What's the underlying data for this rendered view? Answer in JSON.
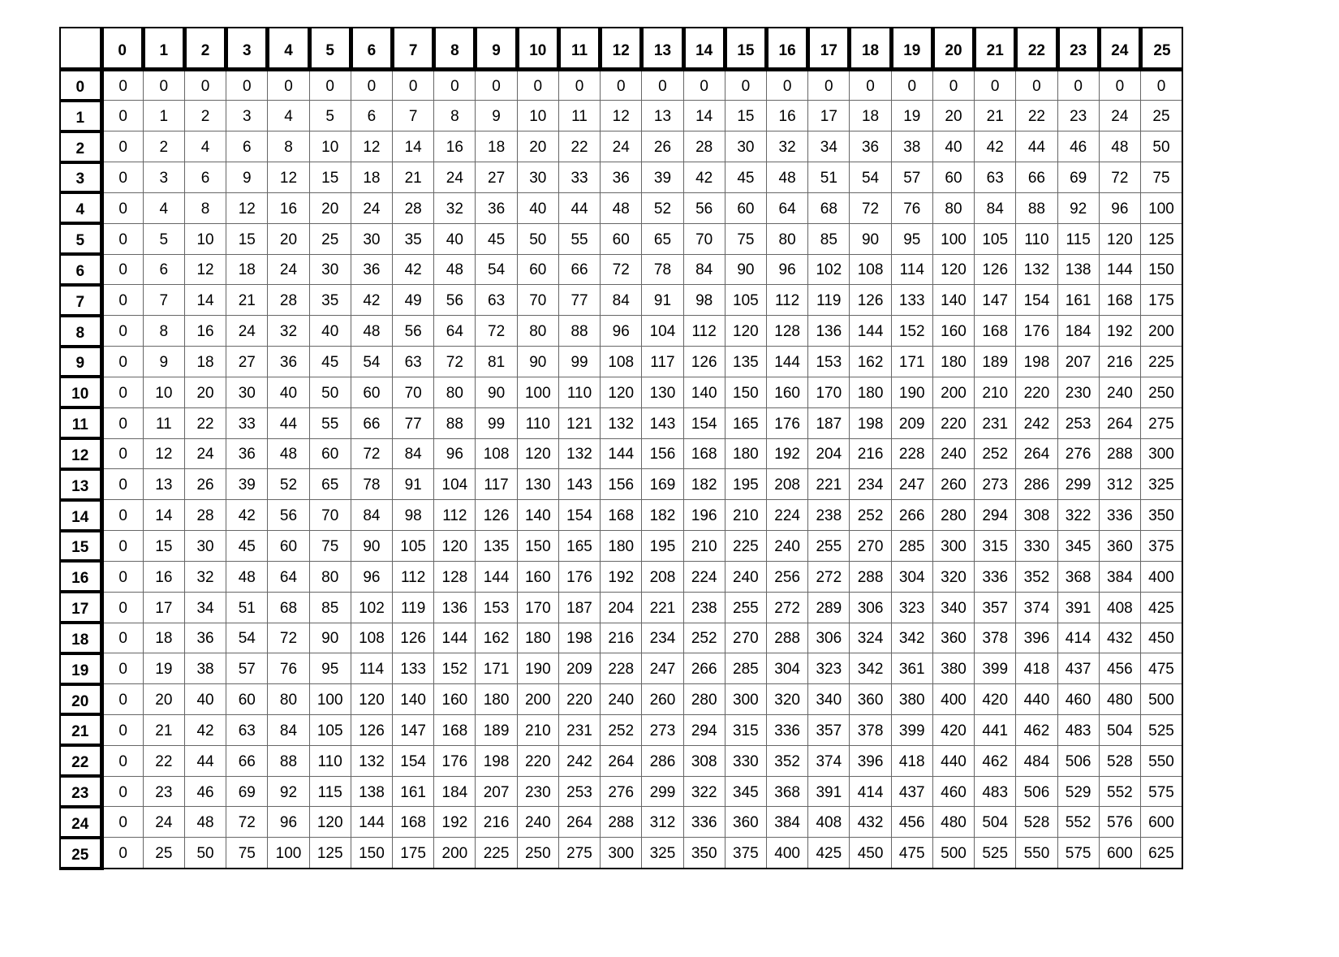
{
  "table": {
    "column_headers": [
      "0",
      "1",
      "2",
      "3",
      "4",
      "5",
      "6",
      "7",
      "8",
      "9",
      "10",
      "11",
      "12",
      "13",
      "14",
      "15",
      "16",
      "17",
      "18",
      "19",
      "20",
      "21",
      "22",
      "23",
      "24",
      "25"
    ],
    "row_headers": [
      "0",
      "1",
      "2",
      "3",
      "4",
      "5",
      "6",
      "7",
      "8",
      "9",
      "10",
      "11",
      "12",
      "13",
      "14",
      "15",
      "16",
      "17",
      "18",
      "19",
      "20",
      "21",
      "22",
      "23",
      "24",
      "25"
    ],
    "rows": [
      [
        0,
        0,
        0,
        0,
        0,
        0,
        0,
        0,
        0,
        0,
        0,
        0,
        0,
        0,
        0,
        0,
        0,
        0,
        0,
        0,
        0,
        0,
        0,
        0,
        0,
        0
      ],
      [
        0,
        1,
        2,
        3,
        4,
        5,
        6,
        7,
        8,
        9,
        10,
        11,
        12,
        13,
        14,
        15,
        16,
        17,
        18,
        19,
        20,
        21,
        22,
        23,
        24,
        25
      ],
      [
        0,
        2,
        4,
        6,
        8,
        10,
        12,
        14,
        16,
        18,
        20,
        22,
        24,
        26,
        28,
        30,
        32,
        34,
        36,
        38,
        40,
        42,
        44,
        46,
        48,
        50
      ],
      [
        0,
        3,
        6,
        9,
        12,
        15,
        18,
        21,
        24,
        27,
        30,
        33,
        36,
        39,
        42,
        45,
        48,
        51,
        54,
        57,
        60,
        63,
        66,
        69,
        72,
        75
      ],
      [
        0,
        4,
        8,
        12,
        16,
        20,
        24,
        28,
        32,
        36,
        40,
        44,
        48,
        52,
        56,
        60,
        64,
        68,
        72,
        76,
        80,
        84,
        88,
        92,
        96,
        100
      ],
      [
        0,
        5,
        10,
        15,
        20,
        25,
        30,
        35,
        40,
        45,
        50,
        55,
        60,
        65,
        70,
        75,
        80,
        85,
        90,
        95,
        100,
        105,
        110,
        115,
        120,
        125
      ],
      [
        0,
        6,
        12,
        18,
        24,
        30,
        36,
        42,
        48,
        54,
        60,
        66,
        72,
        78,
        84,
        90,
        96,
        102,
        108,
        114,
        120,
        126,
        132,
        138,
        144,
        150
      ],
      [
        0,
        7,
        14,
        21,
        28,
        35,
        42,
        49,
        56,
        63,
        70,
        77,
        84,
        91,
        98,
        105,
        112,
        119,
        126,
        133,
        140,
        147,
        154,
        161,
        168,
        175
      ],
      [
        0,
        8,
        16,
        24,
        32,
        40,
        48,
        56,
        64,
        72,
        80,
        88,
        96,
        104,
        112,
        120,
        128,
        136,
        144,
        152,
        160,
        168,
        176,
        184,
        192,
        200
      ],
      [
        0,
        9,
        18,
        27,
        36,
        45,
        54,
        63,
        72,
        81,
        90,
        99,
        108,
        117,
        126,
        135,
        144,
        153,
        162,
        171,
        180,
        189,
        198,
        207,
        216,
        225
      ],
      [
        0,
        10,
        20,
        30,
        40,
        50,
        60,
        70,
        80,
        90,
        100,
        110,
        120,
        130,
        140,
        150,
        160,
        170,
        180,
        190,
        200,
        210,
        220,
        230,
        240,
        250
      ],
      [
        0,
        11,
        22,
        33,
        44,
        55,
        66,
        77,
        88,
        99,
        110,
        121,
        132,
        143,
        154,
        165,
        176,
        187,
        198,
        209,
        220,
        231,
        242,
        253,
        264,
        275
      ],
      [
        0,
        12,
        24,
        36,
        48,
        60,
        72,
        84,
        96,
        108,
        120,
        132,
        144,
        156,
        168,
        180,
        192,
        204,
        216,
        228,
        240,
        252,
        264,
        276,
        288,
        300
      ],
      [
        0,
        13,
        26,
        39,
        52,
        65,
        78,
        91,
        104,
        117,
        130,
        143,
        156,
        169,
        182,
        195,
        208,
        221,
        234,
        247,
        260,
        273,
        286,
        299,
        312,
        325
      ],
      [
        0,
        14,
        28,
        42,
        56,
        70,
        84,
        98,
        112,
        126,
        140,
        154,
        168,
        182,
        196,
        210,
        224,
        238,
        252,
        266,
        280,
        294,
        308,
        322,
        336,
        350
      ],
      [
        0,
        15,
        30,
        45,
        60,
        75,
        90,
        105,
        120,
        135,
        150,
        165,
        180,
        195,
        210,
        225,
        240,
        255,
        270,
        285,
        300,
        315,
        330,
        345,
        360,
        375
      ],
      [
        0,
        16,
        32,
        48,
        64,
        80,
        96,
        112,
        128,
        144,
        160,
        176,
        192,
        208,
        224,
        240,
        256,
        272,
        288,
        304,
        320,
        336,
        352,
        368,
        384,
        400
      ],
      [
        0,
        17,
        34,
        51,
        68,
        85,
        102,
        119,
        136,
        153,
        170,
        187,
        204,
        221,
        238,
        255,
        272,
        289,
        306,
        323,
        340,
        357,
        374,
        391,
        408,
        425
      ],
      [
        0,
        18,
        36,
        54,
        72,
        90,
        108,
        126,
        144,
        162,
        180,
        198,
        216,
        234,
        252,
        270,
        288,
        306,
        324,
        342,
        360,
        378,
        396,
        414,
        432,
        450
      ],
      [
        0,
        19,
        38,
        57,
        76,
        95,
        114,
        133,
        152,
        171,
        190,
        209,
        228,
        247,
        266,
        285,
        304,
        323,
        342,
        361,
        380,
        399,
        418,
        437,
        456,
        475
      ],
      [
        0,
        20,
        40,
        60,
        80,
        100,
        120,
        140,
        160,
        180,
        200,
        220,
        240,
        260,
        280,
        300,
        320,
        340,
        360,
        380,
        400,
        420,
        440,
        460,
        480,
        500
      ],
      [
        0,
        21,
        42,
        63,
        84,
        105,
        126,
        147,
        168,
        189,
        210,
        231,
        252,
        273,
        294,
        315,
        336,
        357,
        378,
        399,
        420,
        441,
        462,
        483,
        504,
        525
      ],
      [
        0,
        22,
        44,
        66,
        88,
        110,
        132,
        154,
        176,
        198,
        220,
        242,
        264,
        286,
        308,
        330,
        352,
        374,
        396,
        418,
        440,
        462,
        484,
        506,
        528,
        550
      ],
      [
        0,
        23,
        46,
        69,
        92,
        115,
        138,
        161,
        184,
        207,
        230,
        253,
        276,
        299,
        322,
        345,
        368,
        391,
        414,
        437,
        460,
        483,
        506,
        529,
        552,
        575
      ],
      [
        0,
        24,
        48,
        72,
        96,
        120,
        144,
        168,
        192,
        216,
        240,
        264,
        288,
        312,
        336,
        360,
        384,
        408,
        432,
        456,
        480,
        504,
        528,
        552,
        576,
        600
      ],
      [
        0,
        25,
        50,
        75,
        100,
        125,
        150,
        175,
        200,
        225,
        250,
        275,
        300,
        325,
        350,
        375,
        400,
        425,
        450,
        475,
        500,
        525,
        550,
        575,
        600,
        625
      ]
    ]
  }
}
